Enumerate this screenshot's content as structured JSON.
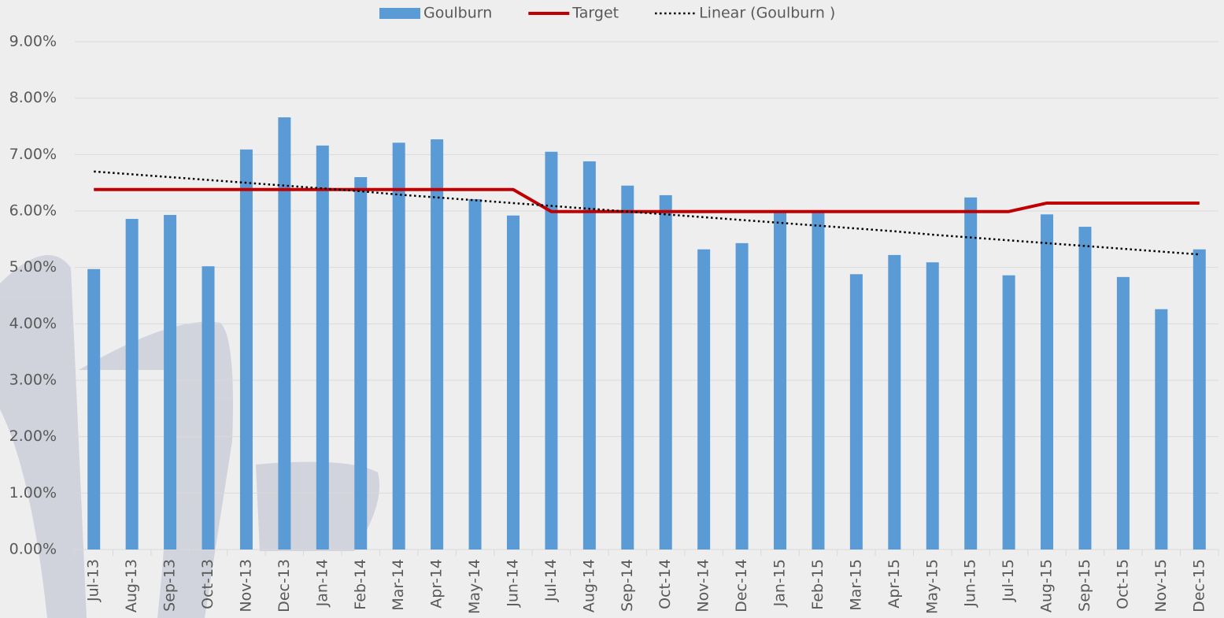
{
  "chart_data": {
    "type": "bar",
    "categories": [
      "Jul-13",
      "Aug-13",
      "Sep-13",
      "Oct-13",
      "Nov-13",
      "Dec-13",
      "Jan-14",
      "Feb-14",
      "Mar-14",
      "Apr-14",
      "May-14",
      "Jun-14",
      "Jul-14",
      "Aug-14",
      "Sep-14",
      "Oct-14",
      "Nov-14",
      "Dec-14",
      "Jan-15",
      "Feb-15",
      "Mar-15",
      "Apr-15",
      "May-15",
      "Jun-15",
      "Jul-15",
      "Aug-15",
      "Sep-15",
      "Oct-15",
      "Nov-15",
      "Dec-15"
    ],
    "series": [
      {
        "name": "Goulburn",
        "kind": "bar",
        "color": "#5b9bd5",
        "values": [
          4.97,
          5.86,
          5.93,
          5.02,
          7.09,
          7.66,
          7.16,
          6.6,
          7.21,
          7.27,
          6.21,
          5.92,
          7.05,
          6.88,
          6.45,
          6.28,
          5.32,
          5.43,
          6.0,
          6.0,
          4.88,
          5.22,
          5.09,
          6.24,
          4.86,
          5.94,
          5.72,
          4.83,
          4.26,
          5.32
        ]
      },
      {
        "name": "Target",
        "kind": "line",
        "color": "#c00000",
        "values": [
          6.38,
          6.38,
          6.38,
          6.38,
          6.38,
          6.38,
          6.38,
          6.38,
          6.38,
          6.38,
          6.38,
          6.38,
          5.99,
          5.99,
          5.99,
          5.99,
          5.99,
          5.99,
          5.99,
          5.99,
          5.99,
          5.99,
          5.99,
          5.99,
          5.99,
          6.14,
          6.14,
          6.14,
          6.14,
          6.14
        ]
      },
      {
        "name": "Linear (Goulburn )",
        "kind": "dotted",
        "color": "#000000",
        "values": [
          6.7,
          6.65,
          6.6,
          6.55,
          6.5,
          6.45,
          6.4,
          6.35,
          6.29,
          6.24,
          6.19,
          6.14,
          6.09,
          6.04,
          5.99,
          5.94,
          5.89,
          5.84,
          5.79,
          5.74,
          5.69,
          5.64,
          5.58,
          5.53,
          5.48,
          5.43,
          5.38,
          5.33,
          5.28,
          5.23
        ]
      }
    ],
    "ylim": [
      0,
      9
    ],
    "yticks": [
      {
        "value": 0,
        "label": "0.00%"
      },
      {
        "value": 1,
        "label": "1.00%"
      },
      {
        "value": 2,
        "label": "2.00%"
      },
      {
        "value": 3,
        "label": "3.00%"
      },
      {
        "value": 4,
        "label": "4.00%"
      },
      {
        "value": 5,
        "label": "5.00%"
      },
      {
        "value": 6,
        "label": "6.00%"
      },
      {
        "value": 7,
        "label": "7.00%"
      },
      {
        "value": 8,
        "label": "8.00%"
      },
      {
        "value": 9,
        "label": "9.00%"
      }
    ],
    "grid": true,
    "legend": "top"
  }
}
